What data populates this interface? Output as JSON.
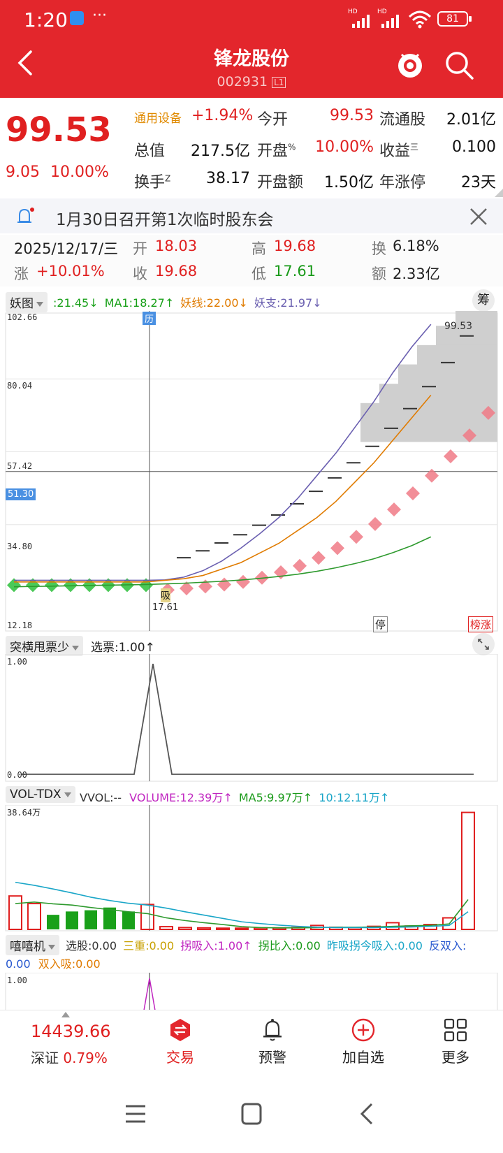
{
  "status_bar": {
    "time": "1:20",
    "dots": "···",
    "battery": "81",
    "hd1": "HD",
    "hd2": "HD"
  },
  "header": {
    "title": "锋龙股份",
    "code": "002931",
    "level": "L1"
  },
  "quote": {
    "price": "99.53",
    "change": "9.05",
    "change_pct": "10.00%",
    "sector": "通用设备",
    "sector_pct": "+1.94%",
    "rows": [
      [
        {
          "label": "今开",
          "value": "99.53"
        },
        {
          "label": "流通股",
          "value": "2.01亿"
        }
      ],
      [
        {
          "label": "总值",
          "value": "217.5亿"
        },
        {
          "label": "开盘",
          "sup": "%",
          "value": "10.00%"
        },
        {
          "label": "收益",
          "sup": "三",
          "value": "0.100"
        }
      ],
      [
        {
          "label": "换手",
          "sup": "Z",
          "value": "38.17"
        },
        {
          "label": "开盘额",
          "value": "1.50亿"
        },
        {
          "label": "年涨停",
          "value": "23天"
        }
      ]
    ]
  },
  "notice": {
    "text": "1月30日召开第1次临时股东会"
  },
  "day_info": {
    "date": "2025/12/17/三",
    "open_l": "开",
    "open": "18.03",
    "high_l": "高",
    "high": "19.68",
    "turn_l": "换",
    "turn": "6.18%",
    "chg_l": "涨",
    "chg": "+10.01%",
    "close_l": "收",
    "close": "19.68",
    "low_l": "低",
    "low": "17.61",
    "amt_l": "额",
    "amt": "2.33亿"
  },
  "main_chart": {
    "indicator": "妖图",
    "legend": [
      {
        "text": ":21.45↓",
        "color": "#18a018"
      },
      {
        "text": "MA1:18.27↑",
        "color": "#18a018"
      },
      {
        "text": "妖线:22.00↓",
        "color": "#e07b00"
      },
      {
        "text": "妖支:21.97↓",
        "color": "#6a5fb0"
      }
    ],
    "chip_btn": "筹",
    "y_ticks": [
      "102.66",
      "80.04",
      "57.42",
      "34.80",
      "12.18"
    ],
    "cursor_price": "51.30",
    "last_price_label": "99.53",
    "cursor_date_tag": "历",
    "low_marker": "17.61",
    "xi_label": "吸",
    "badges": [
      "停",
      "榜涨"
    ]
  },
  "chart_data": [
    {
      "type": "line",
      "title": "妖图",
      "ylim": [
        12.18,
        102.66
      ],
      "series": [
        {
          "name": "妖支",
          "values": [
            17.5,
            17.5,
            17.5,
            17.5,
            17.5,
            17.5,
            17.5,
            17.5,
            17.61,
            18.5,
            20.5,
            23.5,
            27.5,
            32,
            37,
            43,
            50,
            57,
            65,
            73,
            82,
            90,
            97
          ]
        },
        {
          "name": "妖线",
          "values": [
            17,
            17,
            17,
            17,
            17,
            17,
            17,
            17,
            17.5,
            18,
            19,
            21,
            23,
            26,
            29,
            33,
            37,
            42,
            48,
            54,
            61,
            68,
            75
          ]
        },
        {
          "name": "MA1",
          "values": [
            15.5,
            15.6,
            15.7,
            15.8,
            15.9,
            16,
            16.1,
            16.2,
            16.4,
            16.6,
            16.9,
            17.2,
            17.6,
            18.1,
            18.7,
            19.4,
            20.3,
            21.4,
            22.7,
            24.2,
            26.1,
            28.3,
            31
          ]
        }
      ]
    },
    {
      "type": "line",
      "title": "突横甩票少",
      "ylim": [
        0,
        1
      ],
      "series": [
        {
          "name": "选票",
          "values": [
            0,
            0,
            0,
            0,
            0,
            0,
            0,
            1,
            0,
            0,
            0,
            0,
            0,
            0,
            0,
            0,
            0,
            0,
            0,
            0,
            0,
            0,
            0,
            0,
            0
          ]
        }
      ]
    },
    {
      "type": "bar",
      "title": "VOL-TDX",
      "ylim": [
        0,
        38.64
      ],
      "ylabel": "万",
      "values": [
        11,
        8.5,
        4.8,
        5.9,
        6.3,
        7.2,
        5.9,
        8.2,
        0.9,
        0.6,
        0.5,
        0.4,
        0.4,
        0.5,
        0.5,
        0.6,
        1.3,
        0.7,
        0.6,
        1.0,
        2.2,
        1.1,
        1.6,
        3.8,
        38.5
      ]
    }
  ],
  "sub1": {
    "name": "突横甩票少",
    "legend": "选票:1.00↑",
    "y_top": "1.00",
    "y_bottom": "0.00"
  },
  "vol": {
    "name": "VOL-TDX",
    "legend": [
      {
        "text": "VVOL:--",
        "color": "#333"
      },
      {
        "text": "VOLUME:12.39万↑",
        "color": "#c026c0"
      },
      {
        "text": "MA5:9.97万↑",
        "color": "#1a9a1a"
      },
      {
        "text": "10:12.11万↑",
        "color": "#1aa6c8"
      }
    ],
    "y_top": "38.64万"
  },
  "sub3": {
    "name": "嘻嘻机",
    "legend_line1": [
      {
        "text": "选股:0.00",
        "color": "#333"
      },
      {
        "text": "三重:0.00",
        "color": "#c8a000"
      },
      {
        "text": "拐吸入:1.00↑",
        "color": "#c026c0"
      },
      {
        "text": "拐比入:0.00",
        "color": "#1a9a1a"
      },
      {
        "text": "昨吸拐今吸入:0.00",
        "color": "#1aa6c8"
      },
      {
        "text": "反双入:",
        "color": "#2a5ad0"
      }
    ],
    "legend_line2": [
      {
        "text": "0.00",
        "color": "#2a5ad0"
      },
      {
        "text": "双入吸:0.00",
        "color": "#e07b00"
      }
    ],
    "y_top": "1.00"
  },
  "bottom_bar": {
    "index_value": "14439.66",
    "index_name": "深证",
    "index_pct": "0.79%",
    "items": [
      "交易",
      "预警",
      "加自选",
      "更多"
    ]
  }
}
